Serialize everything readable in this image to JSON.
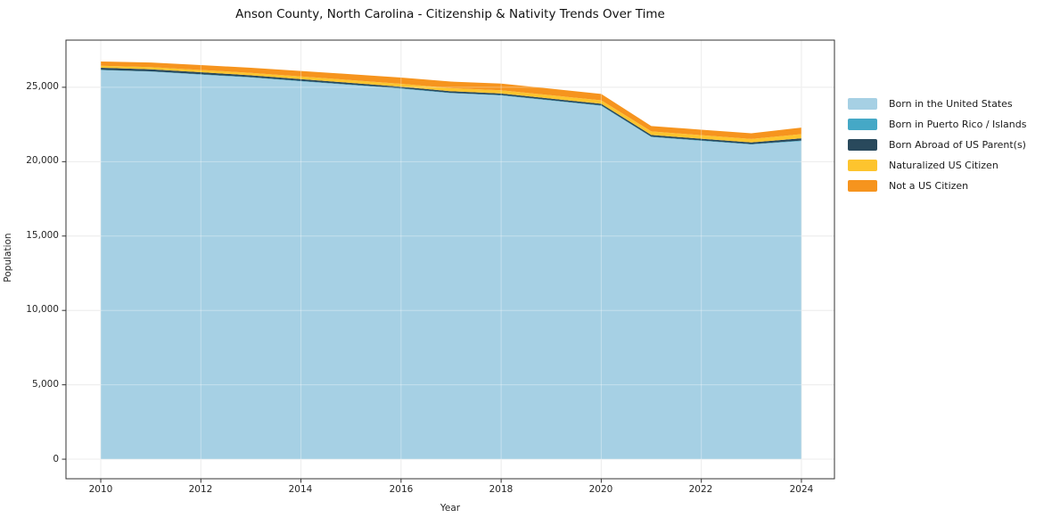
{
  "title": "Anson County, North Carolina - Citizenship & Nativity Trends Over Time",
  "chart_data": {
    "type": "area",
    "stacked": true,
    "title": "Anson County, North Carolina - Citizenship & Nativity Trends Over Time",
    "xlabel": "Year",
    "ylabel": "Population",
    "x": [
      2010,
      2011,
      2012,
      2013,
      2014,
      2015,
      2016,
      2017,
      2018,
      2019,
      2020,
      2021,
      2022,
      2023,
      2024
    ],
    "series": [
      {
        "name": "Born in the United States",
        "color": "#a6d0e4",
        "values": [
          26150,
          26050,
          25850,
          25650,
          25400,
          25150,
          24900,
          24600,
          24450,
          24100,
          23750,
          21650,
          21400,
          21150,
          21380
        ]
      },
      {
        "name": "Born in Puerto Rico / Islands",
        "color": "#45a8c6",
        "values": [
          25,
          25,
          30,
          30,
          30,
          30,
          30,
          25,
          30,
          30,
          35,
          30,
          30,
          30,
          40
        ]
      },
      {
        "name": "Born Abroad of US Parent(s)",
        "color": "#29495c",
        "values": [
          140,
          135,
          130,
          125,
          120,
          115,
          110,
          110,
          105,
          105,
          110,
          115,
          110,
          110,
          150
        ]
      },
      {
        "name": "Naturalized US Citizen",
        "color": "#fdc42e",
        "values": [
          130,
          145,
          155,
          165,
          175,
          185,
          195,
          205,
          215,
          225,
          230,
          240,
          240,
          235,
          280
        ]
      },
      {
        "name": "Not a US Citizen",
        "color": "#f6941e",
        "values": [
          290,
          310,
          330,
          340,
          370,
          400,
          420,
          440,
          450,
          440,
          430,
          360,
          370,
          380,
          440
        ]
      }
    ],
    "xticks": [
      2010,
      2012,
      2014,
      2016,
      2018,
      2020,
      2022,
      2024
    ],
    "xtick_labels": [
      "2010",
      "2012",
      "2014",
      "2016",
      "2018",
      "2020",
      "2022",
      "2024"
    ],
    "yticks": [
      0,
      5000,
      10000,
      15000,
      20000,
      25000
    ],
    "ytick_labels": [
      "0",
      "5,000",
      "10,000",
      "15,000",
      "20,000",
      "25,000"
    ],
    "xlim": [
      2009.305,
      2024.66
    ],
    "ylim": [
      -1315,
      28170
    ],
    "grid": true,
    "legend_position": "right of plot",
    "colors": {
      "grid": "#e0e0e0",
      "spine": "#333333",
      "background": "#ffffff"
    }
  }
}
